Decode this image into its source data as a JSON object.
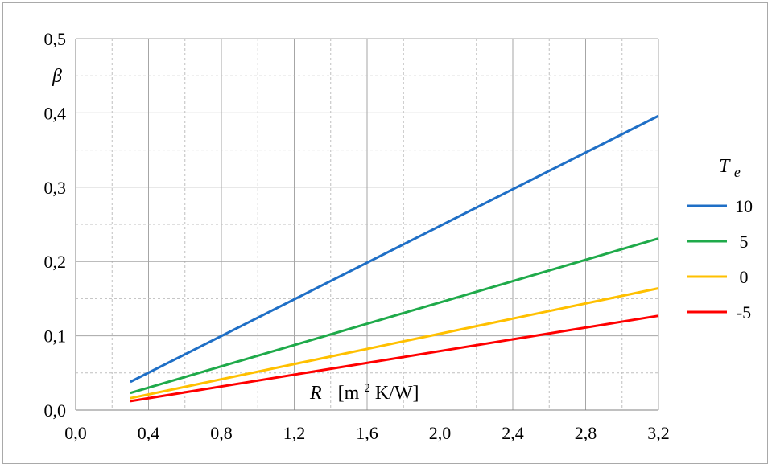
{
  "chart_data": {
    "type": "line",
    "title": "",
    "xlabel": "R",
    "xlabel_unit": "[m²K/W]",
    "xlabel_unit_parts": [
      "[m",
      "2",
      "K/W]"
    ],
    "ylabel": "β",
    "xlim": [
      0.0,
      3.2
    ],
    "ylim": [
      0.0,
      0.5
    ],
    "x_ticks": [
      "0,0",
      "0,4",
      "0,8",
      "1,2",
      "1,6",
      "2,0",
      "2,4",
      "2,8",
      "3,2"
    ],
    "y_ticks": [
      "0,0",
      "0,1",
      "0,2",
      "0,3",
      "0,4",
      "0,5"
    ],
    "grid": true,
    "legend_title": "Te",
    "legend_title_parts": [
      "T",
      "e"
    ],
    "legend_position": "right",
    "x": [
      0.3,
      3.2
    ],
    "series": [
      {
        "name": "10",
        "color": "#1f6fc6",
        "values": [
          0.038,
          0.396
        ]
      },
      {
        "name": "5",
        "color": "#1faa4a",
        "values": [
          0.023,
          0.231
        ]
      },
      {
        "name": "0",
        "color": "#ffc000",
        "values": [
          0.016,
          0.164
        ]
      },
      {
        "name": "-5",
        "color": "#ff0000",
        "values": [
          0.012,
          0.127
        ]
      }
    ]
  }
}
